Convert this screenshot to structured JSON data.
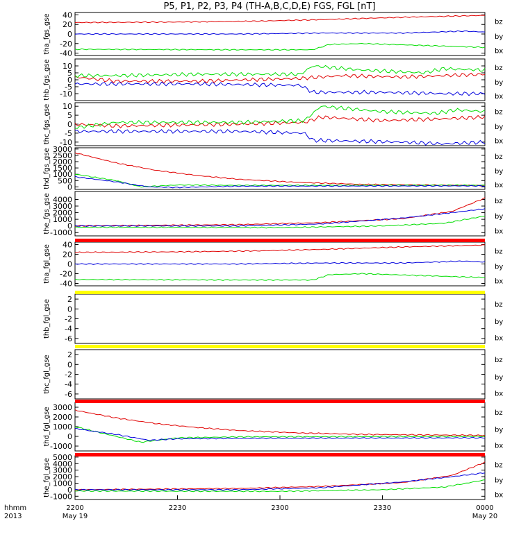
{
  "title": "P5, P1, P2, P3, P4 (TH-A,B,C,D,E) FGS, FGL [nT]",
  "legend": [
    "bz",
    "by",
    "bx"
  ],
  "colors": {
    "bz": "#e00000",
    "by": "#00dd00",
    "bx": "#0000dd",
    "yellow_bar": "#ffff00",
    "red_bar": "#ff0000"
  },
  "x_axis": {
    "row_labels": [
      "hhmm",
      "2013"
    ],
    "ticks": [
      {
        "main": "2200",
        "sub": "May 19"
      },
      {
        "main": "2230",
        "sub": ""
      },
      {
        "main": "2300",
        "sub": ""
      },
      {
        "main": "2330",
        "sub": ""
      },
      {
        "main": "0000",
        "sub": "May 20"
      }
    ]
  },
  "chart_data": [
    {
      "type": "line",
      "ylabel": "tha_fgs_gse",
      "ylim": [
        -45,
        45
      ],
      "yticks": [
        "40",
        "20",
        "0",
        "-20",
        "-40"
      ],
      "series": [
        {
          "name": "bz",
          "knots": [
            [
              0,
              24
            ],
            [
              25,
              25
            ],
            [
              45,
              27
            ],
            [
              60,
              30
            ],
            [
              80,
              35
            ],
            [
              100,
              39
            ]
          ]
        },
        {
          "name": "by",
          "knots": [
            [
              0,
              -32
            ],
            [
              40,
              -33
            ],
            [
              58,
              -33
            ],
            [
              62,
              -22
            ],
            [
              70,
              -20
            ],
            [
              85,
              -24
            ],
            [
              100,
              -28
            ]
          ]
        },
        {
          "name": "bx",
          "knots": [
            [
              0,
              0
            ],
            [
              40,
              0
            ],
            [
              60,
              2
            ],
            [
              80,
              2
            ],
            [
              95,
              6
            ],
            [
              100,
              4
            ]
          ]
        }
      ]
    },
    {
      "type": "line",
      "ylabel": "thb_fgs_gse",
      "ylim": [
        -15,
        15
      ],
      "yticks": [
        "10",
        "5",
        "0",
        "-5",
        "-10"
      ],
      "series": [
        {
          "name": "bz",
          "knots": [
            [
              0,
              2
            ],
            [
              10,
              -1
            ],
            [
              30,
              -1
            ],
            [
              55,
              1
            ],
            [
              65,
              3
            ],
            [
              80,
              2
            ],
            [
              100,
              4
            ]
          ]
        },
        {
          "name": "by",
          "knots": [
            [
              0,
              3
            ],
            [
              10,
              3
            ],
            [
              30,
              4
            ],
            [
              55,
              4
            ],
            [
              58,
              10
            ],
            [
              70,
              7
            ],
            [
              85,
              5
            ],
            [
              90,
              8
            ],
            [
              100,
              7
            ]
          ]
        },
        {
          "name": "bx",
          "knots": [
            [
              0,
              -3
            ],
            [
              30,
              -3
            ],
            [
              55,
              -4
            ],
            [
              58,
              -9
            ],
            [
              75,
              -9
            ],
            [
              90,
              -10
            ],
            [
              100,
              -10
            ]
          ]
        }
      ]
    },
    {
      "type": "line",
      "ylabel": "thc_fgs_gse",
      "ylim": [
        -12,
        12
      ],
      "yticks": [
        "10",
        "5",
        "0",
        "-5",
        "-10"
      ],
      "series": [
        {
          "name": "bz",
          "knots": [
            [
              0,
              0
            ],
            [
              10,
              -1
            ],
            [
              40,
              0
            ],
            [
              56,
              1
            ],
            [
              60,
              4
            ],
            [
              75,
              2
            ],
            [
              90,
              3
            ],
            [
              100,
              4
            ]
          ]
        },
        {
          "name": "by",
          "knots": [
            [
              0,
              -2
            ],
            [
              10,
              1
            ],
            [
              40,
              1
            ],
            [
              56,
              2
            ],
            [
              60,
              10
            ],
            [
              75,
              7
            ],
            [
              88,
              6
            ],
            [
              93,
              8
            ],
            [
              100,
              7
            ]
          ]
        },
        {
          "name": "bx",
          "knots": [
            [
              0,
              -4
            ],
            [
              40,
              -4
            ],
            [
              56,
              -5
            ],
            [
              58,
              -9
            ],
            [
              80,
              -10
            ],
            [
              90,
              -11
            ],
            [
              100,
              -10
            ]
          ]
        }
      ]
    },
    {
      "type": "line",
      "ylabel": "thd_fgs_gse",
      "ylim": [
        -200,
        3100
      ],
      "yticks": [
        "3000",
        "2500",
        "2000",
        "1500",
        "1000",
        "500",
        "0"
      ],
      "series": [
        {
          "name": "bz",
          "knots": [
            [
              0,
              2700
            ],
            [
              10,
              1900
            ],
            [
              20,
              1300
            ],
            [
              30,
              900
            ],
            [
              40,
              600
            ],
            [
              55,
              350
            ],
            [
              70,
              200
            ],
            [
              100,
              100
            ]
          ]
        },
        {
          "name": "by",
          "knots": [
            [
              0,
              1000
            ],
            [
              10,
              500
            ],
            [
              16,
              0
            ],
            [
              25,
              150
            ],
            [
              40,
              120
            ],
            [
              100,
              130
            ]
          ]
        },
        {
          "name": "bx",
          "knots": [
            [
              0,
              800
            ],
            [
              10,
              400
            ],
            [
              18,
              0
            ],
            [
              25,
              -50
            ],
            [
              40,
              60
            ],
            [
              100,
              80
            ]
          ]
        }
      ]
    },
    {
      "type": "line",
      "ylabel": "the_fgs_gse",
      "ylim": [
        -1500,
        5200
      ],
      "yticks": [
        "4000",
        "3000",
        "2000",
        "1000",
        "0",
        "-1000"
      ],
      "series": [
        {
          "name": "bz",
          "knots": [
            [
              0,
              0
            ],
            [
              40,
              200
            ],
            [
              60,
              500
            ],
            [
              80,
              1100
            ],
            [
              92,
              2200
            ],
            [
              100,
              4200
            ]
          ]
        },
        {
          "name": "by",
          "knots": [
            [
              0,
              -200
            ],
            [
              50,
              -250
            ],
            [
              75,
              0
            ],
            [
              90,
              400
            ],
            [
              100,
              1500
            ]
          ]
        },
        {
          "name": "bx",
          "knots": [
            [
              0,
              0
            ],
            [
              40,
              0
            ],
            [
              60,
              300
            ],
            [
              80,
              1200
            ],
            [
              92,
              2000
            ],
            [
              100,
              2600
            ]
          ]
        }
      ]
    },
    {
      "type": "line",
      "ylabel": "tha_fgl_gse",
      "ylim": [
        -45,
        45
      ],
      "yticks": [
        "40",
        "20",
        "0",
        "-20",
        "-40"
      ],
      "series": [
        {
          "name": "bz",
          "knots": [
            [
              0,
              24
            ],
            [
              25,
              25
            ],
            [
              45,
              27
            ],
            [
              60,
              30
            ],
            [
              80,
              35
            ],
            [
              100,
              39
            ]
          ]
        },
        {
          "name": "by",
          "knots": [
            [
              0,
              -32
            ],
            [
              40,
              -33
            ],
            [
              58,
              -33
            ],
            [
              62,
              -22
            ],
            [
              70,
              -20
            ],
            [
              85,
              -24
            ],
            [
              100,
              -28
            ]
          ]
        },
        {
          "name": "bx",
          "knots": [
            [
              0,
              0
            ],
            [
              40,
              0
            ],
            [
              60,
              2
            ],
            [
              80,
              2
            ],
            [
              95,
              6
            ],
            [
              100,
              4
            ]
          ]
        }
      ]
    },
    {
      "type": "line",
      "ylabel": "thb_fgl_gse",
      "ylim": [
        -7,
        3
      ],
      "yticks": [
        "2",
        "0",
        "-2",
        "-4",
        "-6"
      ],
      "series": []
    },
    {
      "type": "line",
      "ylabel": "thc_fgl_gse",
      "ylim": [
        -7,
        3
      ],
      "yticks": [
        "2",
        "0",
        "-2",
        "-4",
        "-6"
      ],
      "series": []
    },
    {
      "type": "line",
      "ylabel": "thd_fgl_gse",
      "ylim": [
        -1500,
        3500
      ],
      "yticks": [
        "3000",
        "2000",
        "1000",
        "0",
        "-1000"
      ],
      "series": [
        {
          "name": "bz",
          "knots": [
            [
              0,
              2700
            ],
            [
              10,
              1900
            ],
            [
              20,
              1300
            ],
            [
              30,
              900
            ],
            [
              40,
              600
            ],
            [
              55,
              350
            ],
            [
              70,
              200
            ],
            [
              100,
              100
            ]
          ]
        },
        {
          "name": "by",
          "knots": [
            [
              0,
              1000
            ],
            [
              10,
              0
            ],
            [
              16,
              -600
            ],
            [
              25,
              -150
            ],
            [
              40,
              -50
            ],
            [
              100,
              0
            ]
          ]
        },
        {
          "name": "bx",
          "knots": [
            [
              0,
              800
            ],
            [
              10,
              200
            ],
            [
              18,
              -400
            ],
            [
              25,
              -250
            ],
            [
              40,
              -200
            ],
            [
              100,
              -150
            ]
          ]
        }
      ]
    },
    {
      "type": "line",
      "ylabel": "the_fgl_gse",
      "ylim": [
        -1500,
        5200
      ],
      "yticks": [
        "5000",
        "4000",
        "3000",
        "2000",
        "1000",
        "0",
        "-1000"
      ],
      "series": [
        {
          "name": "bz",
          "knots": [
            [
              0,
              0
            ],
            [
              40,
              200
            ],
            [
              60,
              500
            ],
            [
              80,
              1100
            ],
            [
              92,
              2200
            ],
            [
              100,
              4200
            ]
          ]
        },
        {
          "name": "by",
          "knots": [
            [
              0,
              -200
            ],
            [
              50,
              -250
            ],
            [
              75,
              0
            ],
            [
              90,
              400
            ],
            [
              100,
              1500
            ]
          ]
        },
        {
          "name": "bx",
          "knots": [
            [
              0,
              0
            ],
            [
              40,
              0
            ],
            [
              60,
              300
            ],
            [
              80,
              1200
            ],
            [
              92,
              2000
            ],
            [
              100,
              2600
            ]
          ]
        }
      ]
    }
  ]
}
